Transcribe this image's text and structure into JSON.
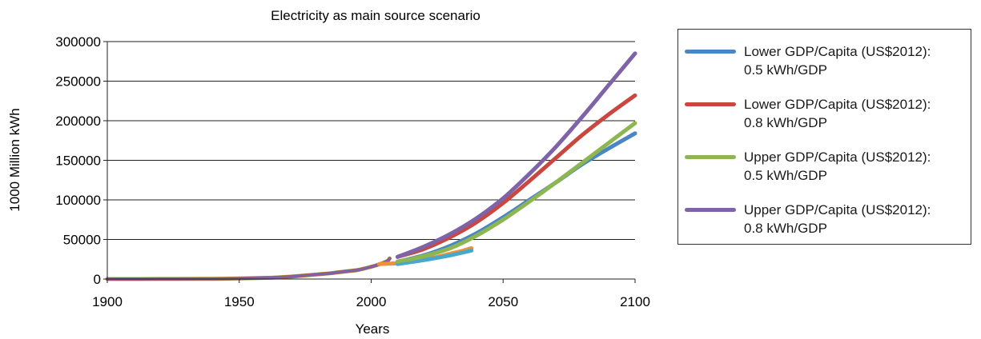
{
  "chart_data": {
    "type": "line",
    "title": "Electricity as main source scenario",
    "xlabel": "Years",
    "ylabel": "1000 Million kWh",
    "xlim": [
      1900,
      2100
    ],
    "ylim": [
      0,
      300000
    ],
    "x_ticks": [
      "1900",
      "1950",
      "2000",
      "2050",
      "2100"
    ],
    "y_ticks": [
      "0",
      "50000",
      "100000",
      "150000",
      "200000",
      "250000",
      "300000"
    ],
    "grid": "horizontal",
    "legend_position": "right",
    "historical": {
      "x": [
        1900,
        1920,
        1940,
        1950,
        1960,
        1965,
        1970,
        1975,
        1980,
        1985,
        1990,
        1995,
        2000,
        2003,
        2006,
        2007
      ],
      "y": [
        0,
        100,
        300,
        800,
        1500,
        2200,
        3200,
        4500,
        6000,
        7500,
        9500,
        11500,
        15500,
        18500,
        22500,
        26000
      ]
    },
    "series": [
      {
        "name": "Lower GDP/Capita (US$2012): 0.5 kWh/GDP",
        "color": "#4a86c5",
        "x": [
          2010,
          2020,
          2030,
          2040,
          2050,
          2060,
          2070,
          2080,
          2090,
          2100
        ],
        "y": [
          22000,
          30000,
          42000,
          58000,
          78000,
          100000,
          122000,
          145000,
          165000,
          184000
        ]
      },
      {
        "name": "Lower GDP/Capita (US$2012): 0.8 kWh/GDP",
        "color": "#c9473f",
        "x": [
          2010,
          2020,
          2030,
          2040,
          2050,
          2060,
          2070,
          2080,
          2090,
          2100
        ],
        "y": [
          28000,
          38000,
          53000,
          72000,
          96000,
          124000,
          153000,
          182000,
          208000,
          232000
        ]
      },
      {
        "name": "Upper GDP/Capita (US$2012): 0.5 kWh/GDP",
        "color": "#8eb650",
        "x": [
          2010,
          2020,
          2030,
          2040,
          2050,
          2060,
          2070,
          2080,
          2090,
          2100
        ],
        "y": [
          22000,
          29000,
          39000,
          55000,
          75000,
          98000,
          122000,
          147000,
          172000,
          197000
        ]
      },
      {
        "name": "Upper GDP/Capita (US$2012): 0.8 kWh/GDP",
        "color": "#7e63a8",
        "x": [
          2010,
          2020,
          2030,
          2040,
          2050,
          2060,
          2070,
          2080,
          2090,
          2100
        ],
        "y": [
          28000,
          41000,
          57000,
          77000,
          102000,
          133000,
          167000,
          205000,
          245000,
          285000
        ]
      }
    ],
    "short_series": [
      {
        "color": "#f0913a",
        "x": [
          2003,
          2010,
          2015,
          2020,
          2025,
          2030,
          2035,
          2038
        ],
        "y": [
          19000,
          20000,
          22000,
          25000,
          28000,
          32000,
          36000,
          39000
        ]
      },
      {
        "color": "#47a9c9",
        "x": [
          2010,
          2020,
          2030,
          2038
        ],
        "y": [
          19000,
          24000,
          30000,
          36000
        ]
      }
    ]
  }
}
